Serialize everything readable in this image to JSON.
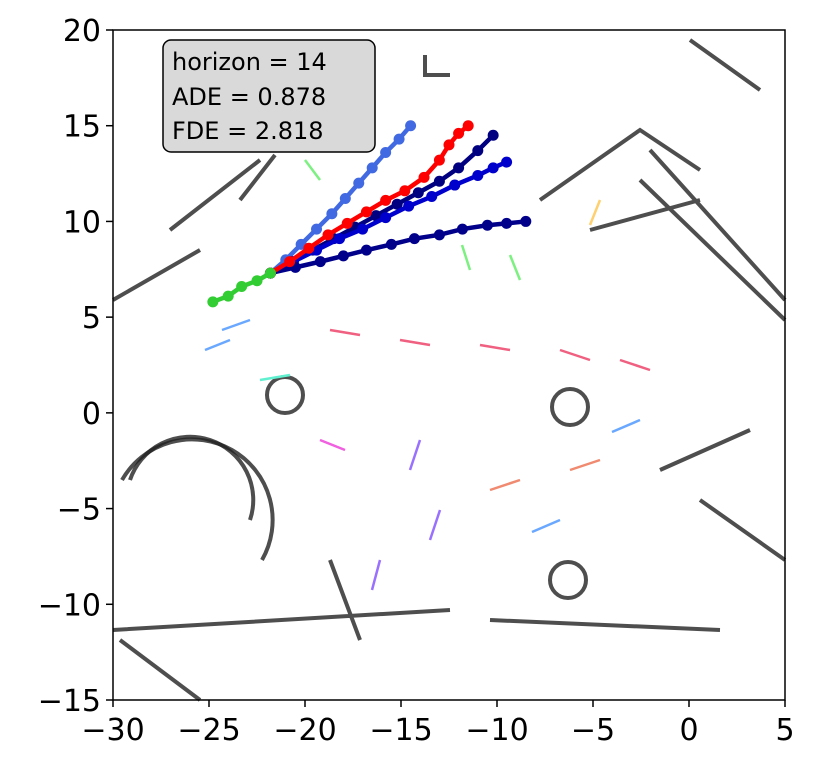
{
  "chart_data": {
    "type": "line",
    "annotation": [
      "horizon = 14",
      "ADE = 0.878",
      "FDE = 2.818"
    ],
    "xlim": [
      -30,
      5
    ],
    "ylim": [
      -15,
      20
    ],
    "xticks": [
      {
        "value": -30,
        "label": "−30"
      },
      {
        "value": -25,
        "label": "−25"
      },
      {
        "value": -20,
        "label": "−20"
      },
      {
        "value": -15,
        "label": "−15"
      },
      {
        "value": -10,
        "label": "−10"
      },
      {
        "value": -5,
        "label": "−5"
      },
      0,
      5
    ],
    "yticks": [
      {
        "value": -15,
        "label": "−15"
      },
      {
        "value": -10,
        "label": "−10"
      },
      {
        "value": -5,
        "label": "−5"
      },
      0,
      5,
      10,
      15,
      20
    ],
    "series": [
      {
        "color": "#4169e1",
        "x": [
          -21.8,
          -21,
          -20.2,
          -19.4,
          -18.6,
          -17.9,
          -17.2,
          -16.5,
          -15.8,
          -15.1,
          -14.5
        ],
        "values": [
          7.3,
          8,
          8.8,
          9.6,
          10.4,
          11.2,
          12,
          12.8,
          13.6,
          14.3,
          15
        ]
      },
      {
        "color": "#000080",
        "x": [
          -21.8,
          -20.7,
          -19.6,
          -18.5,
          -17.4,
          -16.3,
          -15.2,
          -14.1,
          -13,
          -12,
          -11,
          -10.2
        ],
        "values": [
          7.3,
          7.9,
          8.5,
          9.1,
          9.7,
          10.3,
          10.9,
          11.5,
          12.1,
          12.8,
          13.7,
          14.5
        ]
      },
      {
        "color": "#0000cd",
        "x": [
          -21.8,
          -20.6,
          -19.4,
          -18.2,
          -17,
          -15.8,
          -14.6,
          -13.4,
          -12.2,
          -11,
          -10.2,
          -9.5
        ],
        "values": [
          7.3,
          7.9,
          8.5,
          9.1,
          9.6,
          10.2,
          10.8,
          11.3,
          11.9,
          12.4,
          12.8,
          13.1
        ]
      },
      {
        "color": "#00008b",
        "x": [
          -21.8,
          -20.5,
          -19.2,
          -18,
          -16.8,
          -15.5,
          -14.3,
          -13,
          -11.8,
          -10.5,
          -9.5,
          -8.5
        ],
        "values": [
          7.3,
          7.6,
          7.9,
          8.2,
          8.5,
          8.8,
          9.1,
          9.3,
          9.6,
          9.8,
          9.9,
          10
        ]
      },
      {
        "color": "#ff0000",
        "x": [
          -21.8,
          -20.8,
          -19.8,
          -18.8,
          -17.8,
          -16.8,
          -15.8,
          -14.8,
          -13.8,
          -13,
          -12.5,
          -12,
          -11.5
        ],
        "values": [
          7.3,
          7.9,
          8.6,
          9.3,
          9.9,
          10.5,
          11.1,
          11.6,
          12.3,
          13.2,
          14,
          14.6,
          15
        ]
      },
      {
        "color": "#32cd32",
        "x": [
          -24.8,
          -24,
          -23.3,
          -22.5,
          -21.8
        ],
        "values": [
          5.8,
          6.1,
          6.6,
          6.9,
          7.3
        ]
      }
    ]
  }
}
